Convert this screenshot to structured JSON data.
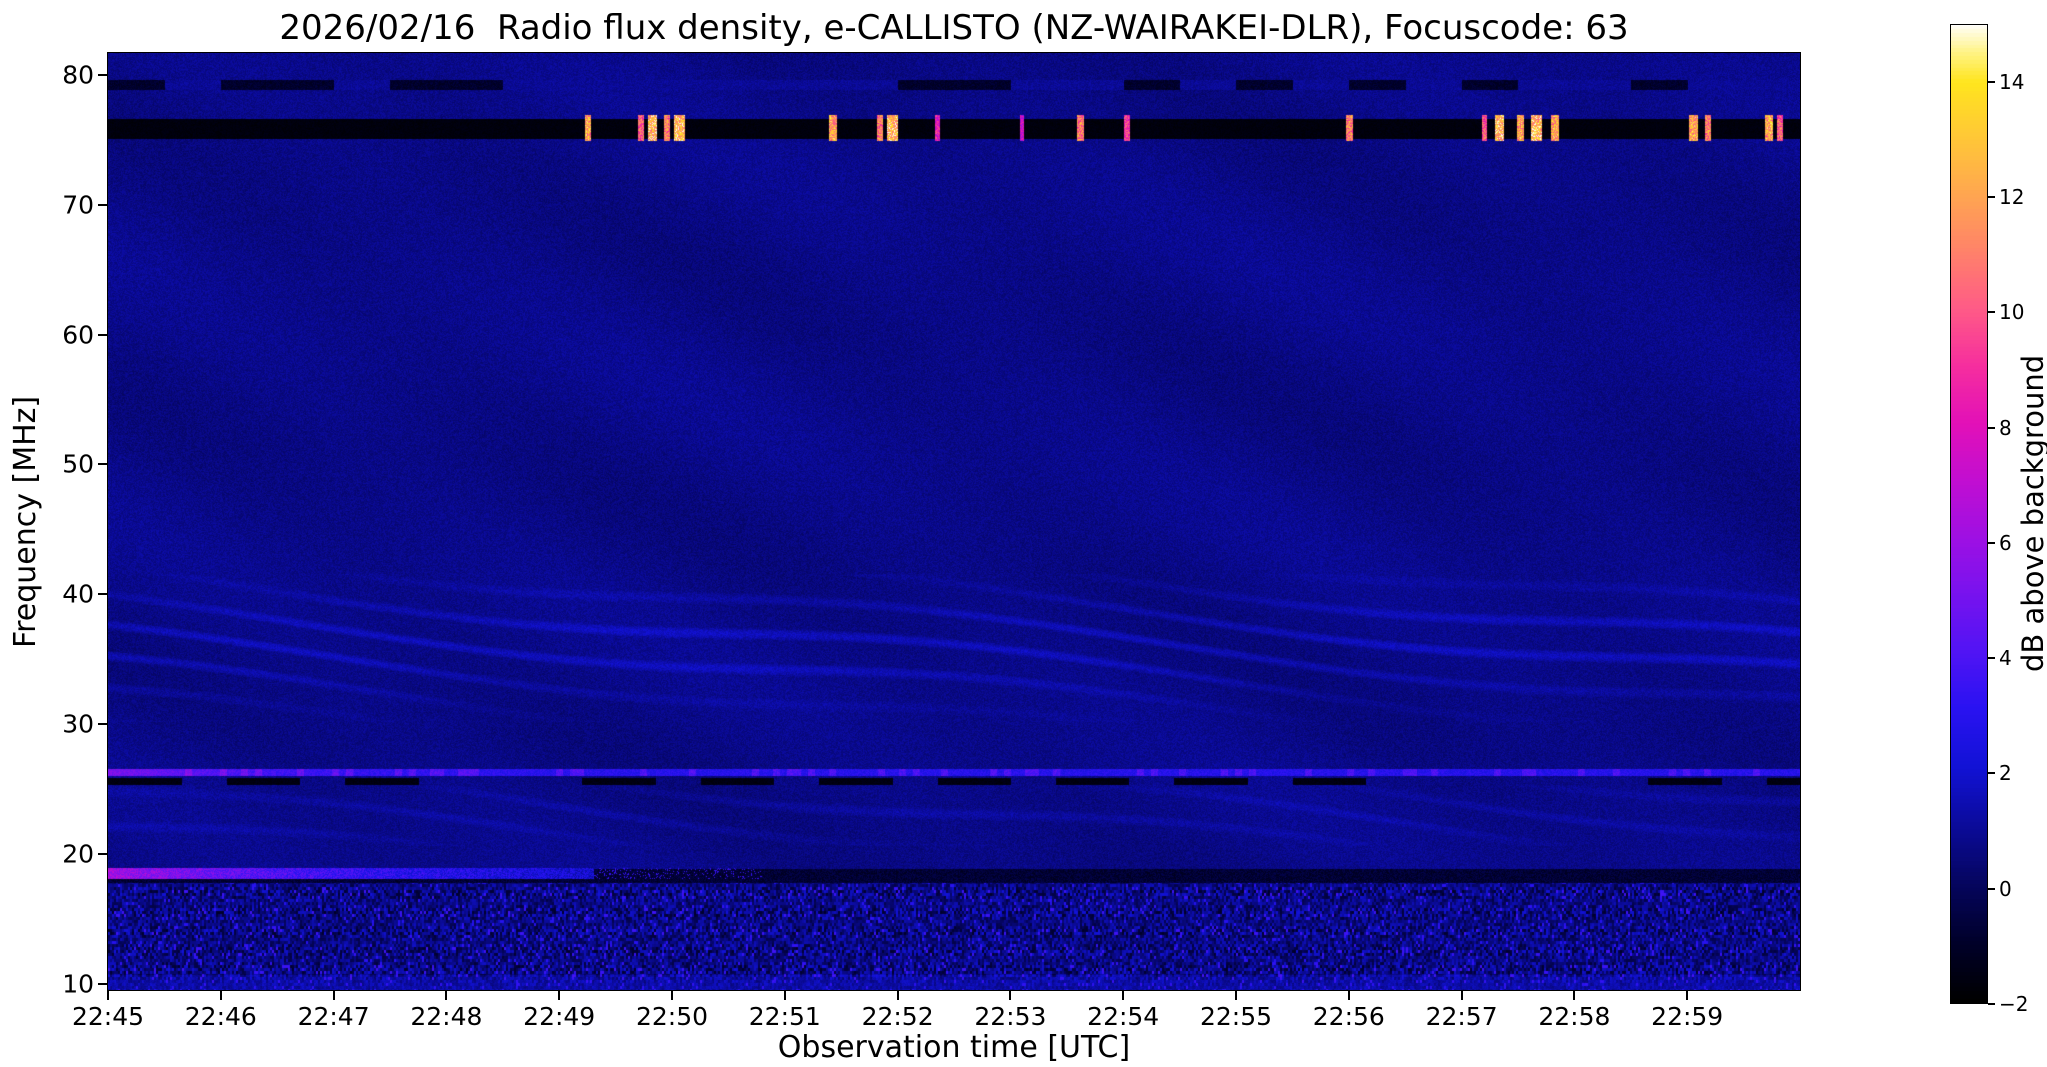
{
  "figure": {
    "title": "2026/02/16  Radio flux density, e-CALLISTO (NZ-WAIRAKEI-DLR), Focuscode: 63",
    "background_color": "#ffffff"
  },
  "chart_data": {
    "type": "heatmap",
    "title": "2026/02/16  Radio flux density, e-CALLISTO (NZ-WAIRAKEI-DLR), Focuscode: 63",
    "xlabel": "Observation time [UTC]",
    "ylabel": "Frequency [MHz]",
    "time_axis": {
      "start": "22:45",
      "duration_min": 15,
      "ticks": [
        "22:45",
        "22:46",
        "22:47",
        "22:48",
        "22:49",
        "22:50",
        "22:51",
        "22:52",
        "22:53",
        "22:54",
        "22:55",
        "22:56",
        "22:57",
        "22:58",
        "22:59"
      ]
    },
    "freq_axis": {
      "range": [
        9.5,
        81.7
      ],
      "ticks": [
        80,
        70,
        60,
        50,
        40,
        30,
        20,
        10
      ]
    },
    "colorbar": {
      "label": "dB above background",
      "range": [
        -2,
        15
      ],
      "ticks": [
        14,
        12,
        10,
        8,
        6,
        4,
        2,
        0,
        -2
      ],
      "colormap": "gnuplot2-like",
      "colormap_stops": [
        [
          0.0,
          "#000000"
        ],
        [
          0.06,
          "#00002a"
        ],
        [
          0.12,
          "#05055e"
        ],
        [
          0.18,
          "#0b0b9b"
        ],
        [
          0.24,
          "#1212d6"
        ],
        [
          0.3,
          "#2a12f2"
        ],
        [
          0.36,
          "#5314f4"
        ],
        [
          0.42,
          "#7a12ee"
        ],
        [
          0.47,
          "#9c10e4"
        ],
        [
          0.53,
          "#c00ed2"
        ],
        [
          0.59,
          "#e210b8"
        ],
        [
          0.65,
          "#f62e9e"
        ],
        [
          0.71,
          "#ff5c86"
        ],
        [
          0.77,
          "#ff8468"
        ],
        [
          0.83,
          "#ffa94e"
        ],
        [
          0.89,
          "#ffcb34"
        ],
        [
          0.94,
          "#ffe51e"
        ],
        [
          0.97,
          "#fff385"
        ],
        [
          1.0,
          "#ffffff"
        ]
      ]
    },
    "background_level_db": 0.75,
    "features": [
      {
        "name": "rfi-band-79mhz",
        "type": "dashed_band",
        "freq": [
          78.85,
          79.65
        ],
        "base_db": -0.9,
        "dash_db": 1.9,
        "dash_period_min": 0.5,
        "dash_prob": 0.55,
        "noise_db": 0.8
      },
      {
        "name": "rfi-band-76mhz",
        "type": "black_band",
        "freq": [
          75.15,
          76.65
        ],
        "level_db": -1.85,
        "noise_db": 0.4
      },
      {
        "name": "rfi-bursts-76mhz",
        "type": "bursts",
        "freq": [
          74.95,
          76.95
        ],
        "events": [
          {
            "t": 4.25,
            "w": 0.06,
            "v": 13
          },
          {
            "t": 4.72,
            "w": 0.05,
            "v": 11
          },
          {
            "t": 4.82,
            "w": 0.08,
            "v": 14
          },
          {
            "t": 4.95,
            "w": 0.05,
            "v": 12
          },
          {
            "t": 5.06,
            "w": 0.1,
            "v": 14
          },
          {
            "t": 6.42,
            "w": 0.07,
            "v": 13
          },
          {
            "t": 6.84,
            "w": 0.06,
            "v": 12
          },
          {
            "t": 6.95,
            "w": 0.1,
            "v": 14
          },
          {
            "t": 7.35,
            "w": 0.04,
            "v": 9
          },
          {
            "t": 8.1,
            "w": 0.04,
            "v": 8
          },
          {
            "t": 8.62,
            "w": 0.06,
            "v": 12
          },
          {
            "t": 9.03,
            "w": 0.05,
            "v": 10
          },
          {
            "t": 11.0,
            "w": 0.06,
            "v": 12
          },
          {
            "t": 12.2,
            "w": 0.05,
            "v": 11
          },
          {
            "t": 12.33,
            "w": 0.08,
            "v": 14
          },
          {
            "t": 12.52,
            "w": 0.06,
            "v": 13
          },
          {
            "t": 12.66,
            "w": 0.1,
            "v": 14
          },
          {
            "t": 12.82,
            "w": 0.07,
            "v": 13
          },
          {
            "t": 14.05,
            "w": 0.08,
            "v": 13
          },
          {
            "t": 14.18,
            "w": 0.06,
            "v": 12
          },
          {
            "t": 14.72,
            "w": 0.07,
            "v": 13
          },
          {
            "t": 14.82,
            "w": 0.05,
            "v": 11
          }
        ]
      },
      {
        "name": "interference-waves-36mhz",
        "type": "waves",
        "freq": [
          30.2,
          41.6
        ],
        "center": 36.2,
        "sigma": 3.1,
        "amp_db": 0.95
      },
      {
        "name": "interference-waves-23mhz",
        "type": "waves",
        "freq": [
          20.6,
          25.3
        ],
        "center": 23.0,
        "sigma": 1.7,
        "amp_db": 0.5
      },
      {
        "name": "carrier-26mhz",
        "type": "bright_line",
        "freq": [
          26.02,
          26.55
        ],
        "level_db": 2.3,
        "left_boost_db": 2.4,
        "left_decay_min": 1.3,
        "noise_db": 1.2
      },
      {
        "name": "dropout-dashes-25p6mhz",
        "type": "dark_dashes",
        "freq": [
          25.35,
          25.85
        ],
        "level_db": -1.8,
        "period_min": 1.05,
        "duty": 0.62,
        "prob": 0.75
      },
      {
        "name": "ionospheric-band-18mhz",
        "type": "fading_band",
        "freq": [
          18.1,
          18.95
        ],
        "bright_until_min": 4.3,
        "peak_db": 5.2,
        "decay_min": 2.6,
        "noise_db": 2.2,
        "speckle_until_min": 5.8
      },
      {
        "name": "dropout-band-18mhz",
        "type": "dark_band_from",
        "freq": [
          17.8,
          18.9
        ],
        "start_min": 4.0,
        "left_under_freq": 18.15,
        "level_db": -1.3,
        "noise_db": 1.1
      },
      {
        "name": "hf-noise-floor",
        "type": "noise_region",
        "freq": [
          9.5,
          17.8
        ],
        "amp_db": 2.3,
        "rows": [
          17.0,
          15.5,
          14.0,
          12.55,
          11.15
        ],
        "row_sigma": 0.5,
        "bottom_boost_below_mhz": 10.7,
        "bottom_boost_db": 0.9
      }
    ]
  }
}
